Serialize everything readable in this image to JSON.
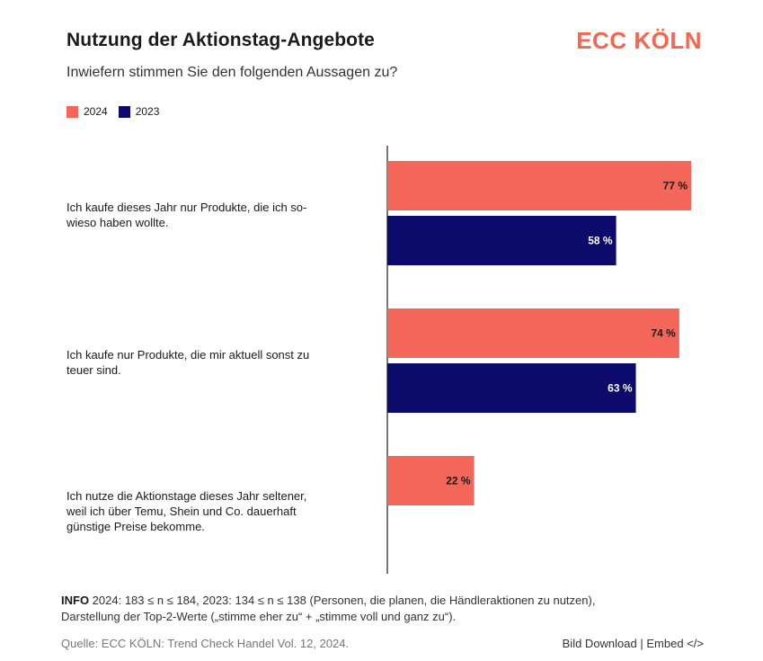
{
  "header": {
    "title": "Nutzung der Aktionstag-Angebote",
    "logo": "ECC KÖLN",
    "subtitle": "Inwiefern stimmen Sie den folgenden Aussagen zu?"
  },
  "legend": {
    "items": [
      {
        "label": "2024",
        "color": "#f4665a"
      },
      {
        "label": "2023",
        "color": "#0c0a6b"
      }
    ]
  },
  "chart_data": {
    "type": "bar",
    "orientation": "horizontal",
    "title": "Nutzung der Aktionstag-Angebote",
    "subtitle": "Inwiefern stimmen Sie den folgenden Aussagen zu?",
    "categories": [
      "Ich kaufe dieses Jahr nur Produkte, die ich so-wieso haben wollte.",
      "Ich kaufe nur Produkte, die mir aktuell sonst zu teuer sind.",
      "Ich nutze die Aktionstage dieses Jahr seltener, weil ich über Temu, Shein und Co. dauerhaft günstige Preise bekomme."
    ],
    "category_lines": [
      [
        "Ich kaufe dieses Jahr nur Produkte, die ich so-",
        "wieso haben wollte."
      ],
      [
        "Ich kaufe nur Produkte, die mir aktuell sonst zu",
        "teuer sind."
      ],
      [
        "Ich nutze die Aktionstage dieses Jahr seltener,",
        "weil ich über Temu, Shein und Co. dauerhaft",
        "günstige Preise bekomme."
      ]
    ],
    "series": [
      {
        "name": "2024",
        "color": "#f4665a",
        "label_color": "#1a1a1a",
        "values": [
          77,
          74,
          22
        ]
      },
      {
        "name": "2023",
        "color": "#0c0a6b",
        "label_color": "#ffffff",
        "values": [
          58,
          63,
          null
        ]
      }
    ],
    "value_suffix": " %",
    "xlim": [
      0,
      100
    ],
    "grid": false,
    "legend_position": "top-left"
  },
  "footer": {
    "info_label": "INFO",
    "info_line1": " 2024: 183 ≤ n ≤ 184, 2023: 134 ≤ n ≤ 138 (Personen, die planen, die Händleraktionen zu nutzen),",
    "info_line2": "Darstellung der Top-2-Werte („stimme eher zu“ + „stimme voll und ganz zu“).",
    "source": "Quelle: ECC KÖLN: Trend Check Handel Vol. 12, 2024.",
    "download": "Bild Download",
    "separator": "|",
    "embed": "Embed </>"
  }
}
